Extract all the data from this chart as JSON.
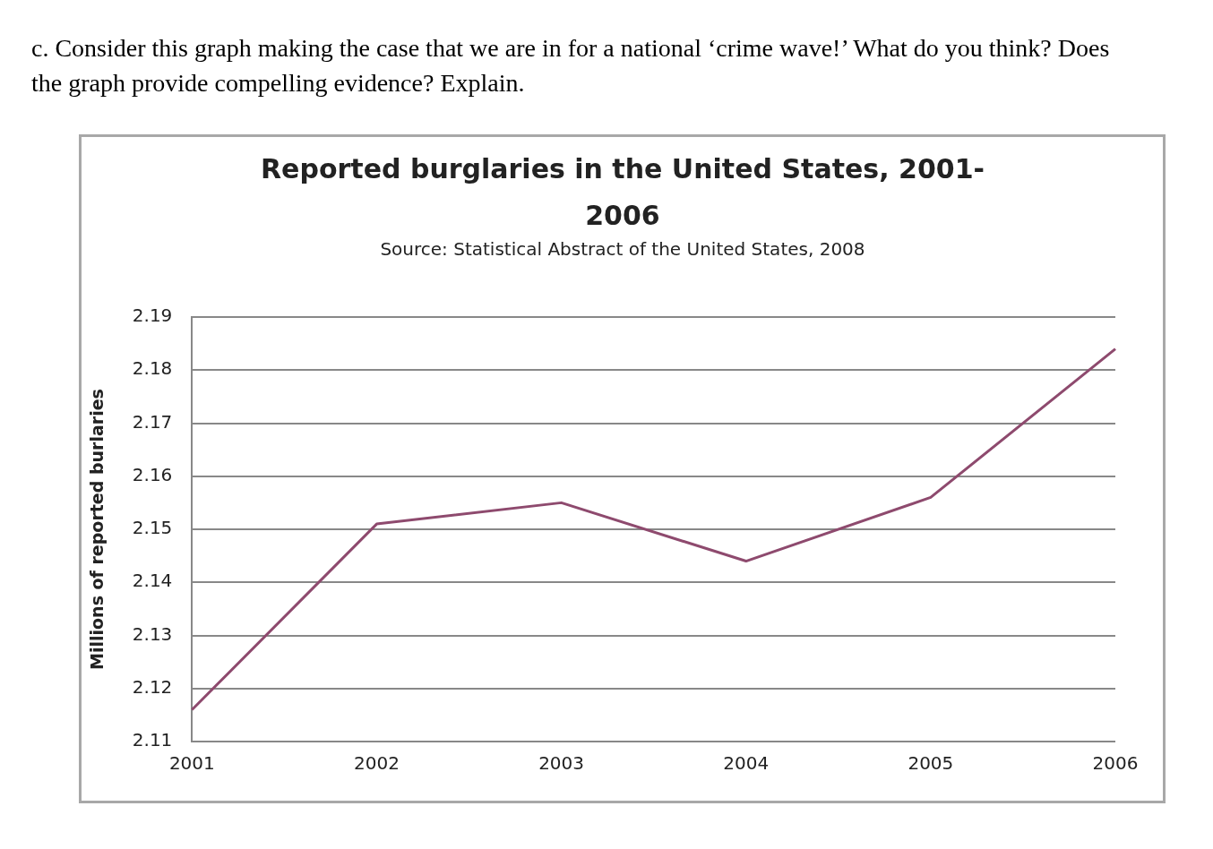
{
  "chart_data": {
    "type": "line",
    "title": "Reported burglaries in the United States, 2001-2006",
    "subtitle": "Source: Statistical Abstract of the United States, 2008",
    "ylabel": "Millions of reported burlaries",
    "annotations": [
      "c. Consider this graph making the case that we are in for a national ‘crime wave!’ What do you think? Does the graph provide compelling evidence? Explain."
    ],
    "categories": [
      "2001",
      "2002",
      "2003",
      "2004",
      "2005",
      "2006"
    ],
    "series": [
      {
        "color": "#8e4a6e",
        "values": [
          2.116,
          2.151,
          2.155,
          2.144,
          2.156,
          2.184
        ]
      }
    ],
    "ylim": [
      2.11,
      2.19
    ],
    "yticks": [
      2.11,
      2.12,
      2.13,
      2.14,
      2.15,
      2.16,
      2.17,
      2.18,
      2.19
    ],
    "grid": "y",
    "legend": false,
    "marker": "none",
    "line_style": "solid"
  }
}
